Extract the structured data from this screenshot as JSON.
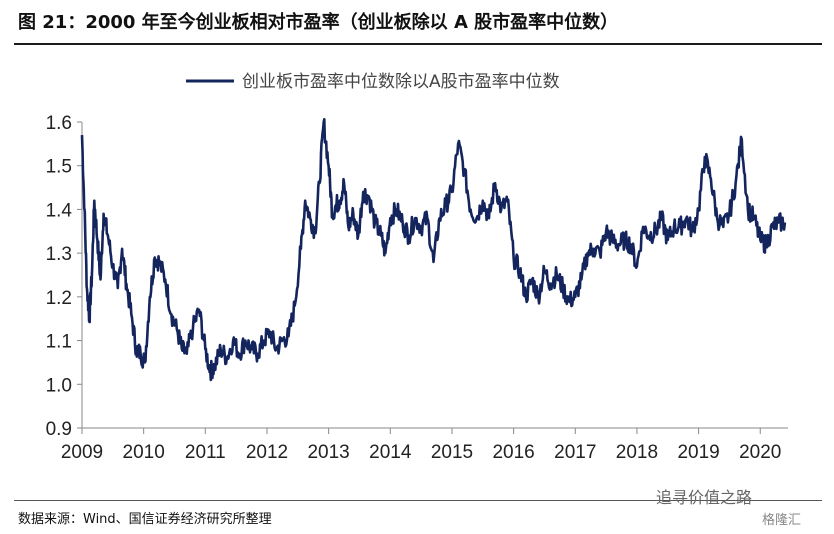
{
  "header": {
    "title": "图 21：2000 年至今创业板相对市盈率（创业板除以 A 股市盈率中位数）"
  },
  "footer": {
    "source": "数据来源：Wind、国信证券经济研究所整理",
    "watermark": "追寻价值之路",
    "watermark_small": "格隆汇"
  },
  "chart_data": {
    "type": "line",
    "title": "",
    "xlabel": "",
    "ylabel": "",
    "ylim": [
      0.9,
      1.6
    ],
    "xlim": [
      2009,
      2020.45
    ],
    "yticks": [
      "0.9",
      "1.0",
      "1.1",
      "1.2",
      "1.3",
      "1.4",
      "1.5",
      "1.6"
    ],
    "xticks": [
      "2009",
      "2010",
      "2011",
      "2012",
      "2013",
      "2014",
      "2015",
      "2016",
      "2017",
      "2018",
      "2019",
      "2020"
    ],
    "grid": false,
    "legend_position": "top-center",
    "series": [
      {
        "name": "创业板市盈率中位数除以A股市盈率中位数",
        "color": "#14255e",
        "x": [
          2009.0,
          2009.04,
          2009.08,
          2009.12,
          2009.16,
          2009.2,
          2009.25,
          2009.3,
          2009.35,
          2009.42,
          2009.5,
          2009.58,
          2009.65,
          2009.72,
          2009.8,
          2009.88,
          2009.95,
          2010.02,
          2010.1,
          2010.18,
          2010.25,
          2010.35,
          2010.45,
          2010.55,
          2010.62,
          2010.7,
          2010.8,
          2010.9,
          2011.0,
          2011.08,
          2011.15,
          2011.25,
          2011.35,
          2011.45,
          2011.55,
          2011.65,
          2011.75,
          2011.85,
          2011.95,
          2012.05,
          2012.15,
          2012.25,
          2012.35,
          2012.45,
          2012.55,
          2012.62,
          2012.7,
          2012.78,
          2012.85,
          2012.92,
          2013.0,
          2013.06,
          2013.12,
          2013.18,
          2013.25,
          2013.32,
          2013.4,
          2013.48,
          2013.56,
          2013.65,
          2013.75,
          2013.85,
          2013.92,
          2014.0,
          2014.1,
          2014.2,
          2014.3,
          2014.4,
          2014.5,
          2014.6,
          2014.7,
          2014.8,
          2014.9,
          2015.0,
          2015.1,
          2015.2,
          2015.3,
          2015.4,
          2015.5,
          2015.6,
          2015.7,
          2015.8,
          2015.9,
          2016.0,
          2016.1,
          2016.2,
          2016.3,
          2016.4,
          2016.5,
          2016.6,
          2016.7,
          2016.8,
          2016.9,
          2017.0,
          2017.1,
          2017.2,
          2017.3,
          2017.4,
          2017.5,
          2017.6,
          2017.7,
          2017.8,
          2017.9,
          2018.0,
          2018.1,
          2018.2,
          2018.3,
          2018.4,
          2018.5,
          2018.6,
          2018.7,
          2018.8,
          2018.9,
          2019.0,
          2019.1,
          2019.2,
          2019.3,
          2019.4,
          2019.5,
          2019.6,
          2019.7,
          2019.8,
          2019.9,
          2020.0,
          2020.1,
          2020.2,
          2020.3,
          2020.4
        ],
        "values": [
          1.57,
          1.4,
          1.22,
          1.15,
          1.25,
          1.42,
          1.33,
          1.24,
          1.39,
          1.34,
          1.27,
          1.22,
          1.31,
          1.23,
          1.16,
          1.08,
          1.07,
          1.05,
          1.2,
          1.29,
          1.28,
          1.24,
          1.16,
          1.12,
          1.08,
          1.07,
          1.13,
          1.17,
          1.08,
          1.03,
          1.04,
          1.08,
          1.06,
          1.1,
          1.07,
          1.1,
          1.08,
          1.07,
          1.1,
          1.12,
          1.08,
          1.1,
          1.11,
          1.18,
          1.31,
          1.42,
          1.38,
          1.35,
          1.46,
          1.6,
          1.5,
          1.39,
          1.41,
          1.42,
          1.46,
          1.36,
          1.39,
          1.34,
          1.44,
          1.43,
          1.37,
          1.34,
          1.3,
          1.38,
          1.4,
          1.37,
          1.34,
          1.38,
          1.36,
          1.38,
          1.28,
          1.38,
          1.41,
          1.44,
          1.55,
          1.49,
          1.4,
          1.38,
          1.42,
          1.38,
          1.46,
          1.4,
          1.42,
          1.29,
          1.26,
          1.2,
          1.24,
          1.2,
          1.26,
          1.23,
          1.25,
          1.22,
          1.19,
          1.2,
          1.24,
          1.3,
          1.31,
          1.3,
          1.35,
          1.33,
          1.32,
          1.33,
          1.32,
          1.27,
          1.36,
          1.34,
          1.35,
          1.38,
          1.33,
          1.36,
          1.36,
          1.38,
          1.35,
          1.4,
          1.52,
          1.47,
          1.38,
          1.36,
          1.39,
          1.46,
          1.56,
          1.4,
          1.38,
          1.33,
          1.32,
          1.36,
          1.37,
          1.37
        ]
      }
    ]
  }
}
